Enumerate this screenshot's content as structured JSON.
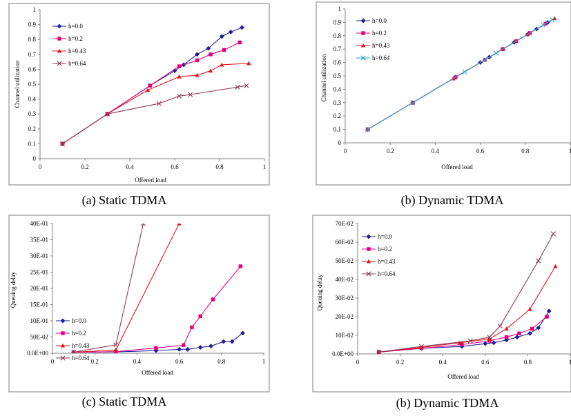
{
  "colors": {
    "h00": "#1f1f9a",
    "h02": "#e6007e",
    "h043": "#e3141b",
    "h064": "#8e3a5b",
    "h064_dynamic": "#2aa3d1",
    "frame": "#7f7f7f"
  },
  "chart_data": [
    {
      "id": "a",
      "type": "line",
      "caption": "(a) Static TDMA",
      "xlabel": "Offered load",
      "ylabel": "Channel utilization",
      "xlim": [
        0,
        1
      ],
      "ylim": [
        0,
        1
      ],
      "xticks": [
        "0",
        "0.2",
        "0.4",
        "0.6",
        "0.8",
        "1"
      ],
      "yticks": [
        "0",
        "0.1",
        "0.2",
        "0.3",
        "0.4",
        "0.5",
        "0.6",
        "0.7",
        "0.8",
        "0.9",
        "1"
      ],
      "legend": "top-left",
      "series": [
        {
          "name": "h=0.0",
          "marker": "diamond",
          "color": "#1f1f9a",
          "x": [
            0.1,
            0.3,
            0.49,
            0.6,
            0.64,
            0.7,
            0.75,
            0.81,
            0.85,
            0.9
          ],
          "y": [
            0.1,
            0.3,
            0.49,
            0.59,
            0.63,
            0.7,
            0.74,
            0.82,
            0.85,
            0.88
          ]
        },
        {
          "name": "h=0.2",
          "marker": "square",
          "color": "#e6007e",
          "x": [
            0.1,
            0.3,
            0.49,
            0.62,
            0.7,
            0.76,
            0.82,
            0.89
          ],
          "y": [
            0.1,
            0.3,
            0.49,
            0.62,
            0.66,
            0.7,
            0.73,
            0.78
          ]
        },
        {
          "name": "h=0.43",
          "marker": "triangle",
          "color": "#e3141b",
          "x": [
            0.1,
            0.3,
            0.48,
            0.62,
            0.7,
            0.76,
            0.81,
            0.93
          ],
          "y": [
            0.1,
            0.3,
            0.46,
            0.55,
            0.56,
            0.59,
            0.63,
            0.64
          ]
        },
        {
          "name": "h=0.64",
          "marker": "x",
          "color": "#8e3a5b",
          "x": [
            0.1,
            0.3,
            0.53,
            0.62,
            0.67,
            0.88,
            0.92
          ],
          "y": [
            0.1,
            0.3,
            0.37,
            0.42,
            0.43,
            0.48,
            0.49
          ]
        }
      ]
    },
    {
      "id": "b",
      "type": "line",
      "caption": "(b) Dynamic TDMA",
      "xlabel": "Offered load",
      "ylabel": "Channel utilization",
      "xlim": [
        0,
        1
      ],
      "ylim": [
        0,
        1
      ],
      "xticks": [
        "0",
        "0.2",
        "0.4",
        "0.6",
        "0.8",
        "1"
      ],
      "yticks": [
        "0",
        "0.1",
        "0.2",
        "0.3",
        "0.4",
        "0.5",
        "0.6",
        "0.7",
        "0.8",
        "0.9",
        "1"
      ],
      "legend": "top-left",
      "series": [
        {
          "name": "h=0.0",
          "marker": "diamond",
          "color": "#1f1f9a",
          "x": [
            0.1,
            0.3,
            0.49,
            0.6,
            0.64,
            0.7,
            0.75,
            0.81,
            0.85,
            0.9
          ],
          "y": [
            0.1,
            0.3,
            0.49,
            0.6,
            0.64,
            0.7,
            0.75,
            0.81,
            0.85,
            0.9
          ]
        },
        {
          "name": "h=0.2",
          "marker": "square",
          "color": "#e6007e",
          "x": [
            0.1,
            0.3,
            0.49,
            0.62,
            0.7,
            0.76,
            0.82,
            0.89
          ],
          "y": [
            0.1,
            0.3,
            0.49,
            0.62,
            0.7,
            0.76,
            0.82,
            0.89
          ]
        },
        {
          "name": "h=0.43",
          "marker": "triangle",
          "color": "#e3141b",
          "x": [
            0.1,
            0.3,
            0.48,
            0.62,
            0.7,
            0.76,
            0.81,
            0.93
          ],
          "y": [
            0.1,
            0.3,
            0.48,
            0.62,
            0.7,
            0.76,
            0.81,
            0.93
          ]
        },
        {
          "name": "h=0.64",
          "marker": "x",
          "color": "#2aa3d1",
          "x": [
            0.1,
            0.3,
            0.53,
            0.62,
            0.67,
            0.88,
            0.92
          ],
          "y": [
            0.1,
            0.3,
            0.53,
            0.62,
            0.67,
            0.88,
            0.92
          ]
        }
      ]
    },
    {
      "id": "c",
      "type": "line",
      "caption": "(c) Static TDMA",
      "xlabel": "Offered load",
      "ylabel": "Queuing delay",
      "xlim": [
        0,
        1
      ],
      "ylim": [
        0,
        0.4
      ],
      "xticks": [
        "0",
        "0.2",
        "0.4",
        "0.6",
        "0.8",
        "1"
      ],
      "yticks": [
        "0.0E+00",
        "50E-02",
        "10E-01",
        "15E-01",
        "20E-01",
        "25E-01",
        "30E-01",
        "35E-01",
        "40E-01"
      ],
      "legend": "right",
      "series": [
        {
          "name": "h=0.0",
          "marker": "diamond",
          "color": "#1f1f9a",
          "x": [
            0.1,
            0.3,
            0.49,
            0.6,
            0.64,
            0.7,
            0.75,
            0.81,
            0.85,
            0.9
          ],
          "y": [
            0.003,
            0.004,
            0.008,
            0.012,
            0.012,
            0.018,
            0.022,
            0.036,
            0.036,
            0.062
          ]
        },
        {
          "name": "h=0.2",
          "marker": "square",
          "color": "#e6007e",
          "x": [
            0.1,
            0.3,
            0.49,
            0.62,
            0.66,
            0.7,
            0.76,
            0.89
          ],
          "y": [
            0.003,
            0.005,
            0.016,
            0.025,
            0.08,
            0.114,
            0.166,
            0.268
          ]
        },
        {
          "name": "h=0.43",
          "marker": "triangle",
          "color": "#e3141b",
          "x": [
            0.1,
            0.3,
            0.6
          ],
          "y": [
            0.003,
            0.01,
            0.4
          ]
        },
        {
          "name": "h=0.64",
          "marker": "x",
          "color": "#8e3a5b",
          "x": [
            0.1,
            0.3,
            0.43
          ],
          "y": [
            0.003,
            0.026,
            0.4
          ]
        }
      ]
    },
    {
      "id": "d",
      "type": "line",
      "caption": "(b) Dynamic TDMA",
      "xlabel": "Offered load",
      "ylabel": "Queuing delay",
      "xlim": [
        0,
        1
      ],
      "ylim": [
        0,
        0.07
      ],
      "xticks": [
        "0",
        "0.2",
        "0.4",
        "0.6",
        "0.8",
        "1"
      ],
      "yticks": [
        "0.0E+00",
        "10E-02",
        "20E-02",
        "30E-02",
        "40E-02",
        "50E-02",
        "60E-02",
        "70E-02"
      ],
      "legend": "top-left",
      "series": [
        {
          "name": "h=0.0",
          "marker": "diamond",
          "color": "#1f1f9a",
          "x": [
            0.1,
            0.3,
            0.49,
            0.6,
            0.64,
            0.7,
            0.75,
            0.81,
            0.85,
            0.9
          ],
          "y": [
            0.001,
            0.003,
            0.004,
            0.0055,
            0.006,
            0.0075,
            0.009,
            0.011,
            0.014,
            0.023
          ]
        },
        {
          "name": "h=0.2",
          "marker": "square",
          "color": "#e6007e",
          "x": [
            0.1,
            0.3,
            0.49,
            0.62,
            0.7,
            0.76,
            0.82,
            0.89
          ],
          "y": [
            0.001,
            0.003,
            0.005,
            0.007,
            0.009,
            0.011,
            0.0135,
            0.02
          ]
        },
        {
          "name": "h=0.43",
          "marker": "triangle",
          "color": "#e3141b",
          "x": [
            0.1,
            0.3,
            0.48,
            0.62,
            0.7,
            0.81,
            0.93
          ],
          "y": [
            0.001,
            0.0035,
            0.006,
            0.008,
            0.0135,
            0.024,
            0.047
          ]
        },
        {
          "name": "h=0.64",
          "marker": "x",
          "color": "#8e3a5b",
          "x": [
            0.1,
            0.3,
            0.53,
            0.62,
            0.67,
            0.85,
            0.92
          ],
          "y": [
            0.001,
            0.004,
            0.007,
            0.009,
            0.015,
            0.05,
            0.0645
          ]
        }
      ]
    }
  ]
}
